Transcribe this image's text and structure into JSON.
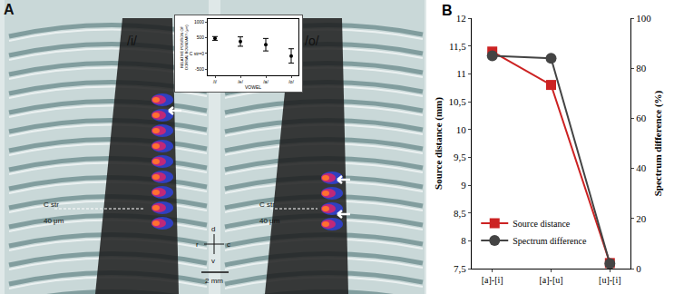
{
  "chart_data": [
    {
      "type": "scatter",
      "x_label": "VOWEL",
      "y_label": [
        "RELATIVE POSITION OF",
        "DORSAL BOUNDARY (μm)"
      ],
      "categories": [
        "/i/",
        "/e/",
        "/a/",
        "/o/"
      ],
      "series": [
        {
          "name": "dorsal boundary",
          "color": "#000000",
          "values": [
            480,
            380,
            280,
            -80
          ],
          "errors": [
            60,
            150,
            200,
            230
          ],
          "marker": "circle"
        }
      ],
      "ylim": [
        -700,
        1100
      ],
      "yticks": [
        -500,
        {
          "value": 0,
          "label": "C str=0"
        },
        500,
        1000
      ]
    },
    {
      "type": "line",
      "title": "B",
      "y_label": "Source distance (mm)",
      "y2_label": "Spectrum difference (%)",
      "categories": [
        "[a]-[i]",
        "[a]-[u]",
        "[u]-[i]"
      ],
      "series": [
        {
          "name": "Source distance",
          "color": "#cc2222",
          "marker": "square",
          "values": [
            11.4,
            10.8,
            7.6
          ]
        },
        {
          "name": "Spectrum difference",
          "color": "#444444",
          "marker": "circle",
          "axis": "y2",
          "values": [
            85,
            84,
            2
          ]
        }
      ],
      "ylim": [
        7.5,
        12
      ],
      "yticks": [
        {
          "value": 7.5,
          "label": "7,5"
        },
        8,
        {
          "value": 8.5,
          "label": "8,5"
        },
        9,
        {
          "value": 9.5,
          "label": "9,5"
        },
        10,
        {
          "value": 10.5,
          "label": "10,5"
        },
        11,
        {
          "value": 11.5,
          "label": "11,5"
        },
        12
      ],
      "y2lim": [
        0,
        100
      ],
      "y2ticks": [
        0,
        20,
        40,
        60,
        80,
        100
      ],
      "legend": "lower left"
    }
  ],
  "panel_a": {
    "label": "A",
    "left": {
      "vowel": "/i/",
      "reference": "C str",
      "scale": "40 μm"
    },
    "right": {
      "vowel": "/o/",
      "reference": "C str",
      "scale": "40 μm"
    },
    "compass": {
      "up": "d",
      "down": "v",
      "left": "r",
      "right": "c"
    },
    "scale_bar": "2 mm"
  }
}
